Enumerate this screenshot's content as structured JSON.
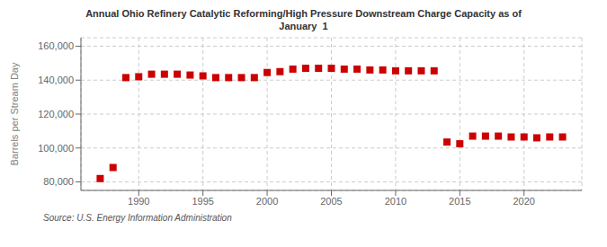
{
  "chart_data": {
    "type": "scatter",
    "title": "Annual Ohio Refinery Catalytic Reforming/High Pressure Downstream Charge Capacity as of\nJanuary  1",
    "y_label": "Barrels per Stream Day",
    "source": "Source: U.S. Energy Information Administration",
    "x": [
      1987,
      1988,
      1989,
      1990,
      1991,
      1992,
      1993,
      1994,
      1995,
      1996,
      1997,
      1998,
      1999,
      2000,
      2001,
      2002,
      2003,
      2004,
      2005,
      2006,
      2007,
      2008,
      2009,
      2010,
      2011,
      2012,
      2013,
      2014,
      2015,
      2016,
      2017,
      2018,
      2019,
      2020,
      2021,
      2022,
      2023
    ],
    "values": [
      82000,
      88500,
      141500,
      142000,
      143500,
      143500,
      143500,
      143000,
      142500,
      141500,
      141500,
      141500,
      141500,
      144500,
      145000,
      146500,
      147000,
      147000,
      147000,
      146500,
      146500,
      146000,
      146000,
      145500,
      145500,
      145500,
      145500,
      103500,
      102500,
      107000,
      107000,
      107000,
      106500,
      106500,
      106000,
      106500,
      106500
    ],
    "color": "#cc0000",
    "marker": "square",
    "xlim": [
      1985.5,
      2024.5
    ],
    "xticks": [
      1990,
      1995,
      2000,
      2005,
      2010,
      2015,
      2020
    ],
    "ylim": [
      75000,
      165000
    ],
    "yticks": [
      {
        "value": 80000,
        "label": "80,000"
      },
      {
        "value": 100000,
        "label": "100,000"
      },
      {
        "value": 120000,
        "label": "120,000"
      },
      {
        "value": 140000,
        "label": "140,000"
      },
      {
        "value": 160000,
        "label": "160,000"
      }
    ],
    "grid": true
  }
}
